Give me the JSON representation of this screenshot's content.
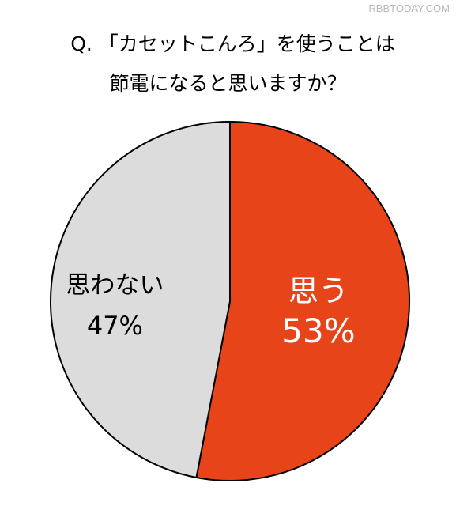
{
  "watermark": "RBBTODAY.COM",
  "title_lines": [
    "Q. 「カセットこんろ」を使うことは",
    "節電になると思いますか？"
  ],
  "colors": {
    "yes": "#e8441a",
    "no": "#dcdcdc",
    "border": "#000000"
  },
  "chart_data": {
    "type": "pie",
    "title": "Q. 「カセットこんろ」を使うことは節電になると思いますか？",
    "slices": [
      {
        "label": "思う",
        "value": 53,
        "value_label": "53%"
      },
      {
        "label": "思わない",
        "value": 47,
        "value_label": "47%"
      }
    ],
    "start_angle_deg": 0,
    "direction": "clockwise"
  }
}
